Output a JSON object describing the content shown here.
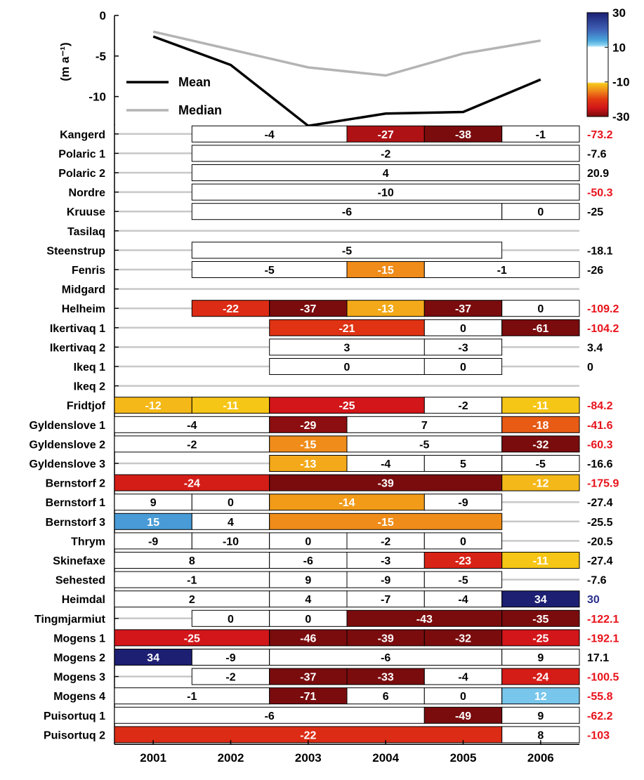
{
  "chart_data": [
    {
      "type": "line",
      "title": "",
      "xlabel": "",
      "ylabel": "(m a⁻¹)",
      "x": [
        2001,
        2002,
        2003,
        2004,
        2005,
        2006
      ],
      "xlim": [
        2000.5,
        2006.5
      ],
      "ylim": [
        -13.5,
        0
      ],
      "yticks": [
        0,
        -5,
        -10
      ],
      "grid": false,
      "legend_position": "bottom-left",
      "series": [
        {
          "name": "Mean",
          "color": "#000000",
          "values": [
            -2.6,
            -6.1,
            -13.6,
            -12.1,
            -11.9,
            -7.9
          ]
        },
        {
          "name": "Median",
          "color": "#b4b4b4",
          "values": [
            -2.0,
            -4.2,
            -6.4,
            -7.4,
            -4.7,
            -3.1
          ]
        }
      ]
    },
    {
      "type": "heatmap",
      "title": "",
      "xlabel": "",
      "ylabel": "",
      "x_ticks": [
        "2001",
        "2002",
        "2003",
        "2004",
        "2005",
        "2006"
      ],
      "colorbar": {
        "ticks": [
          "30",
          "10",
          "-10",
          "-30"
        ],
        "stops": [
          {
            "v": 30,
            "c": "#1c1f72"
          },
          {
            "v": 20,
            "c": "#3f63b8"
          },
          {
            "v": 14,
            "c": "#4aa6dc"
          },
          {
            "v": 11,
            "c": "#8fd6f2"
          },
          {
            "v": 10,
            "c": "#ffffff"
          },
          {
            "v": -10,
            "c": "#ffffff"
          },
          {
            "v": -11,
            "c": "#f6c617"
          },
          {
            "v": -15,
            "c": "#ef8c1a"
          },
          {
            "v": -20,
            "c": "#e23a12"
          },
          {
            "v": -25,
            "c": "#d2161a"
          },
          {
            "v": -30,
            "c": "#7a0c0e"
          }
        ]
      },
      "rows": [
        {
          "name": "Kangerd",
          "total": "-73.2",
          "cells": [
            [
              2,
              3,
              -4
            ],
            [
              4,
              4,
              -27
            ],
            [
              5,
              5,
              -38
            ],
            [
              6,
              6,
              -1
            ]
          ]
        },
        {
          "name": "Polaric 1",
          "total": "-7.6",
          "cells": [
            [
              2,
              6,
              -2
            ]
          ]
        },
        {
          "name": "Polaric 2",
          "total": "20.9",
          "cells": [
            [
              2,
              6,
              4
            ]
          ]
        },
        {
          "name": "Nordre",
          "total": "-50.3",
          "cells": [
            [
              2,
              6,
              -10
            ]
          ]
        },
        {
          "name": "Kruuse",
          "total": "-25",
          "cells": [
            [
              2,
              5,
              -6
            ],
            [
              6,
              6,
              0
            ]
          ]
        },
        {
          "name": "Tasilaq",
          "total": "",
          "cells": []
        },
        {
          "name": "Steenstrup",
          "total": "-18.1",
          "cells": [
            [
              2,
              5,
              -5
            ]
          ]
        },
        {
          "name": "Fenris",
          "total": "-26",
          "cells": [
            [
              2,
              3,
              -5
            ],
            [
              4,
              4,
              -15
            ],
            [
              5,
              6,
              -1
            ]
          ]
        },
        {
          "name": "Midgard",
          "total": "",
          "cells": []
        },
        {
          "name": "Helheim",
          "total": "-109.2",
          "cells": [
            [
              2,
              2,
              -22
            ],
            [
              3,
              3,
              -37
            ],
            [
              4,
              4,
              -13
            ],
            [
              5,
              5,
              -37
            ],
            [
              6,
              6,
              0
            ]
          ]
        },
        {
          "name": "Ikertivaq 1",
          "total": "-104.2",
          "cells": [
            [
              3,
              4,
              -21
            ],
            [
              5,
              5,
              0
            ],
            [
              6,
              6,
              -61
            ]
          ]
        },
        {
          "name": "Ikertivaq 2",
          "total": "3.4",
          "cells": [
            [
              3,
              4,
              3
            ],
            [
              5,
              5,
              -3
            ]
          ]
        },
        {
          "name": "Ikeq 1",
          "total": "0",
          "cells": [
            [
              3,
              4,
              0
            ],
            [
              5,
              5,
              0
            ]
          ]
        },
        {
          "name": "Ikeq 2",
          "total": "",
          "cells": []
        },
        {
          "name": "Fridtjof",
          "total": "-84.2",
          "cells": [
            [
              1,
              1,
              -12
            ],
            [
              2,
              2,
              -11
            ],
            [
              3,
              4,
              -25
            ],
            [
              5,
              5,
              -2
            ],
            [
              6,
              6,
              -11
            ]
          ]
        },
        {
          "name": "Gyldenslove 1",
          "total": "-41.6",
          "cells": [
            [
              1,
              2,
              -4
            ],
            [
              3,
              3,
              -29
            ],
            [
              4,
              5,
              7
            ],
            [
              6,
              6,
              -18
            ]
          ]
        },
        {
          "name": "Gyldenslove 2",
          "total": "-60.3",
          "cells": [
            [
              1,
              2,
              -2
            ],
            [
              3,
              3,
              -15
            ],
            [
              4,
              5,
              -5
            ],
            [
              6,
              6,
              -32
            ]
          ]
        },
        {
          "name": "Gyldenslove 3",
          "total": "-16.6",
          "cells": [
            [
              3,
              3,
              -13
            ],
            [
              4,
              4,
              -4
            ],
            [
              5,
              5,
              5
            ],
            [
              6,
              6,
              -5
            ]
          ]
        },
        {
          "name": "Bernstorf 2",
          "total": "-175.9",
          "cells": [
            [
              1,
              2,
              -24
            ],
            [
              3,
              5,
              -39
            ],
            [
              6,
              6,
              -12
            ]
          ]
        },
        {
          "name": "Bernstorf 1",
          "total": "-27.4",
          "cells": [
            [
              1,
              1,
              9
            ],
            [
              2,
              2,
              0
            ],
            [
              3,
              4,
              -14
            ],
            [
              5,
              5,
              -9
            ]
          ]
        },
        {
          "name": "Bernstorf 3",
          "total": "-25.5",
          "cells": [
            [
              1,
              1,
              15
            ],
            [
              2,
              2,
              4
            ],
            [
              3,
              5,
              -15
            ]
          ]
        },
        {
          "name": "Thrym",
          "total": "-20.5",
          "cells": [
            [
              1,
              1,
              -9
            ],
            [
              2,
              2,
              -10
            ],
            [
              3,
              3,
              0
            ],
            [
              4,
              4,
              -2
            ],
            [
              5,
              5,
              0
            ]
          ]
        },
        {
          "name": "Skinefaxe",
          "total": "-27.4",
          "cells": [
            [
              1,
              2,
              8
            ],
            [
              3,
              3,
              -6
            ],
            [
              4,
              4,
              -3
            ],
            [
              5,
              5,
              -23
            ],
            [
              6,
              6,
              -11
            ]
          ]
        },
        {
          "name": "Sehested",
          "total": "-7.6",
          "cells": [
            [
              1,
              2,
              -1
            ],
            [
              3,
              3,
              9
            ],
            [
              4,
              4,
              -9
            ],
            [
              5,
              5,
              -5
            ]
          ]
        },
        {
          "name": "Heimdal",
          "total": "30",
          "cells": [
            [
              1,
              2,
              2
            ],
            [
              3,
              3,
              4
            ],
            [
              4,
              4,
              -7
            ],
            [
              5,
              5,
              -4
            ],
            [
              6,
              6,
              34
            ]
          ]
        },
        {
          "name": "Tingmjarmiut",
          "total": "-122.1",
          "cells": [
            [
              2,
              2,
              0
            ],
            [
              3,
              3,
              0
            ],
            [
              4,
              5,
              -43
            ],
            [
              6,
              6,
              -35
            ]
          ]
        },
        {
          "name": "Mogens 1",
          "total": "-192.1",
          "cells": [
            [
              1,
              2,
              -25
            ],
            [
              3,
              3,
              -46
            ],
            [
              4,
              4,
              -39
            ],
            [
              5,
              5,
              -32
            ],
            [
              6,
              6,
              -25
            ]
          ]
        },
        {
          "name": "Mogens 2",
          "total": "17.1",
          "cells": [
            [
              1,
              1,
              34
            ],
            [
              2,
              2,
              -9
            ],
            [
              3,
              5,
              -6
            ],
            [
              6,
              6,
              9
            ]
          ]
        },
        {
          "name": "Mogens 3",
          "total": "-100.5",
          "cells": [
            [
              2,
              2,
              -2
            ],
            [
              3,
              3,
              -37
            ],
            [
              4,
              4,
              -33
            ],
            [
              5,
              5,
              -4
            ],
            [
              6,
              6,
              -24
            ]
          ]
        },
        {
          "name": "Mogens 4",
          "total": "-55.8",
          "cells": [
            [
              1,
              2,
              -1
            ],
            [
              3,
              3,
              -71
            ],
            [
              4,
              4,
              6
            ],
            [
              5,
              5,
              0
            ],
            [
              6,
              6,
              12
            ]
          ]
        },
        {
          "name": "Puisortuq 1",
          "total": "-62.2",
          "cells": [
            [
              1,
              4,
              -6
            ],
            [
              5,
              5,
              -49
            ],
            [
              6,
              6,
              9
            ]
          ]
        },
        {
          "name": "Puisortuq 2",
          "total": "-103",
          "cells": [
            [
              1,
              5,
              -22
            ],
            [
              6,
              6,
              8
            ]
          ]
        }
      ]
    }
  ]
}
